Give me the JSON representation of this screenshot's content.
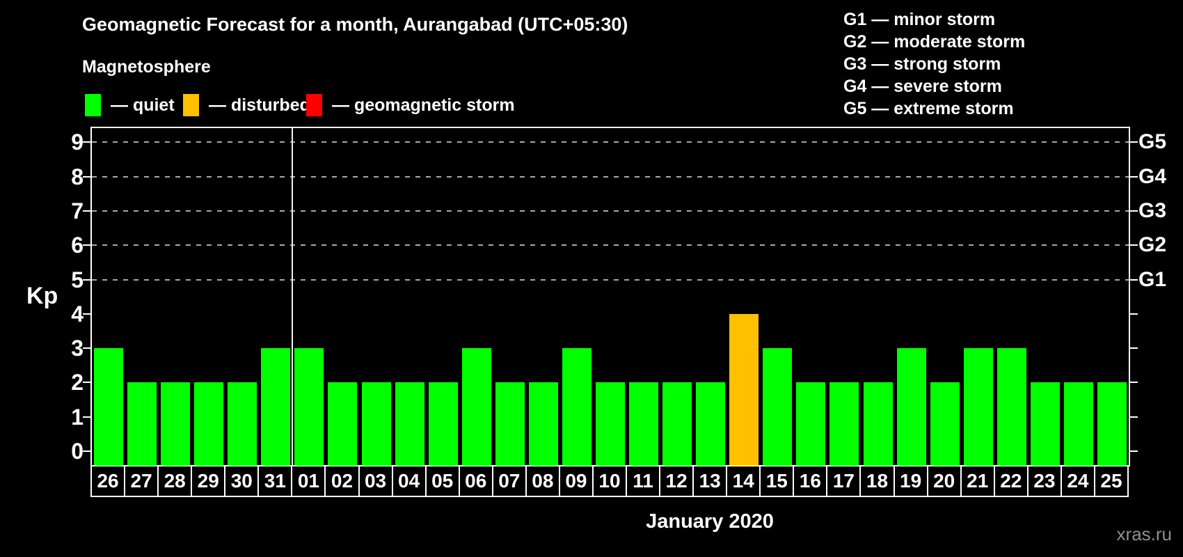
{
  "header": {
    "title": "Geomagnetic Forecast for a month, Aurangabad (UTC+05:30)",
    "subtitle": "Magnetosphere"
  },
  "legend": [
    {
      "key": "quiet",
      "label": "— quiet",
      "color": "#00ff00"
    },
    {
      "key": "disturbed",
      "label": "— disturbed",
      "color": "#ffc000"
    },
    {
      "key": "storm",
      "label": "— geomagnetic storm",
      "color": "#ff0000"
    }
  ],
  "g_scale_legend": [
    "G1 — minor storm",
    "G2 — moderate storm",
    "G3 — strong storm",
    "G4 — severe storm",
    "G5 — extreme storm"
  ],
  "chart_data": {
    "type": "bar",
    "title": "Geomagnetic Forecast for a month, Aurangabad (UTC+05:30)",
    "ylabel": "Kp",
    "xlabel": "January 2020",
    "ylim": [
      0,
      9
    ],
    "y_ticks": [
      0,
      1,
      2,
      3,
      4,
      5,
      6,
      7,
      8,
      9
    ],
    "grid_levels": [
      5,
      6,
      7,
      8,
      9
    ],
    "grid_on": true,
    "legend_position": "top",
    "right_axis_labels": [
      {
        "kp": 5,
        "label": "G1"
      },
      {
        "kp": 6,
        "label": "G2"
      },
      {
        "kp": 7,
        "label": "G3"
      },
      {
        "kp": 8,
        "label": "G4"
      },
      {
        "kp": 9,
        "label": "G5"
      }
    ],
    "month_separator_after_index": 5,
    "categories": [
      "26",
      "27",
      "28",
      "29",
      "30",
      "31",
      "01",
      "02",
      "03",
      "04",
      "05",
      "06",
      "07",
      "08",
      "09",
      "10",
      "11",
      "12",
      "13",
      "14",
      "15",
      "16",
      "17",
      "18",
      "19",
      "20",
      "21",
      "22",
      "23",
      "24",
      "25"
    ],
    "values": [
      3,
      2,
      2,
      2,
      2,
      3,
      3,
      2,
      2,
      2,
      2,
      3,
      2,
      2,
      3,
      2,
      2,
      2,
      2,
      4,
      3,
      2,
      2,
      2,
      3,
      2,
      3,
      3,
      2,
      2,
      2
    ],
    "statuses": [
      "quiet",
      "quiet",
      "quiet",
      "quiet",
      "quiet",
      "quiet",
      "quiet",
      "quiet",
      "quiet",
      "quiet",
      "quiet",
      "quiet",
      "quiet",
      "quiet",
      "quiet",
      "quiet",
      "quiet",
      "quiet",
      "quiet",
      "disturbed",
      "quiet",
      "quiet",
      "quiet",
      "quiet",
      "quiet",
      "quiet",
      "quiet",
      "quiet",
      "quiet",
      "quiet",
      "quiet"
    ],
    "status_colors": {
      "quiet": "#00ff00",
      "disturbed": "#ffc000",
      "storm": "#ff0000"
    }
  },
  "footer": {
    "month_label": "January 2020",
    "watermark": "xras.ru"
  }
}
